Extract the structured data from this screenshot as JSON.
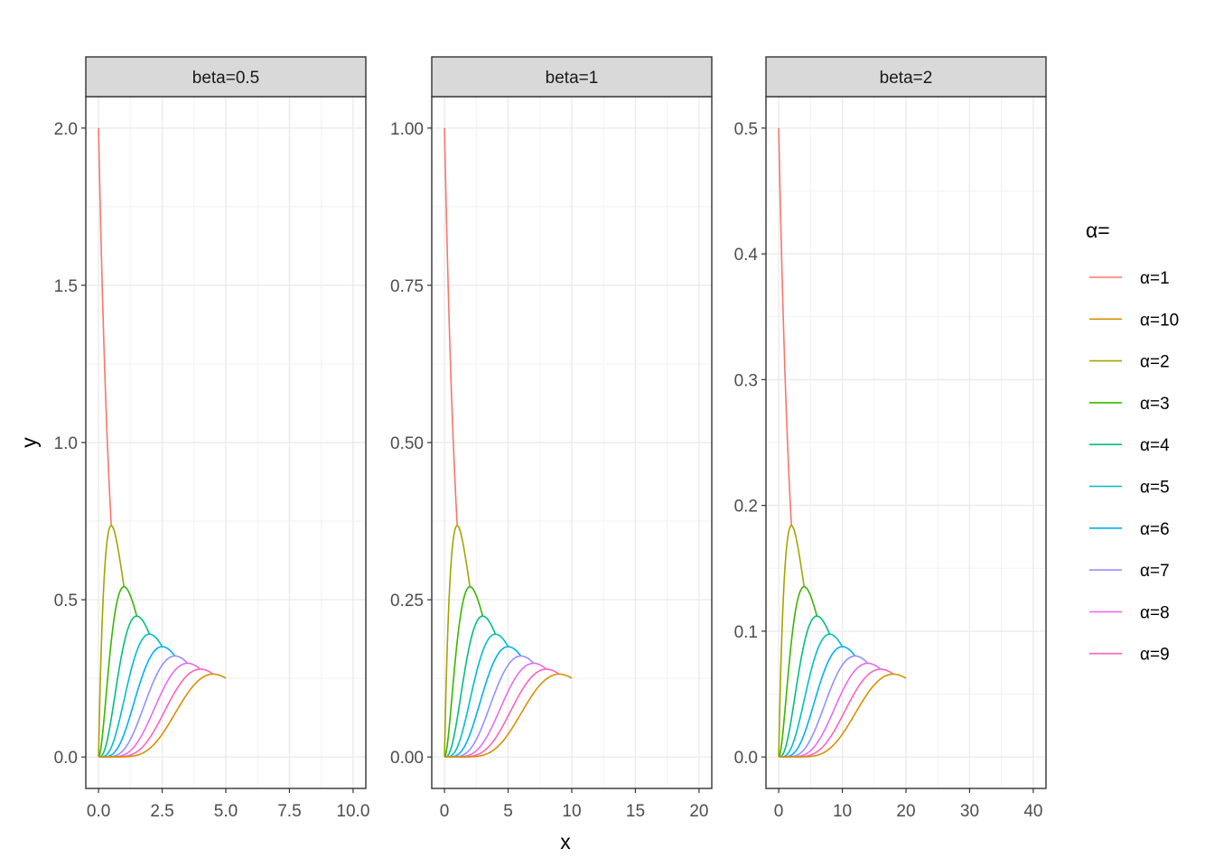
{
  "chart_data": {
    "type": "line",
    "xlabel": "x",
    "ylabel": "y",
    "legend": {
      "title": "α=",
      "placement": "right",
      "entries": [
        {
          "label": "α=1",
          "alpha": 1,
          "color": "#F8766D"
        },
        {
          "label": "α=10",
          "alpha": 10,
          "color": "#D89000"
        },
        {
          "label": "α=2",
          "alpha": 2,
          "color": "#A3A500"
        },
        {
          "label": "α=3",
          "alpha": 3,
          "color": "#39B600"
        },
        {
          "label": "α=4",
          "alpha": 4,
          "color": "#00BF7D"
        },
        {
          "label": "α=5",
          "alpha": 5,
          "color": "#00BFC4"
        },
        {
          "label": "α=6",
          "alpha": 6,
          "color": "#00B0F6"
        },
        {
          "label": "α=7",
          "alpha": 7,
          "color": "#9590FF"
        },
        {
          "label": "α=8",
          "alpha": 8,
          "color": "#E76BF3"
        },
        {
          "label": "α=9",
          "alpha": 9,
          "color": "#FF62BC"
        }
      ]
    },
    "grid": true,
    "series_formula": "y = x^(alpha-1) * exp(-x/beta) / (Gamma(alpha) * beta^alpha), x from 0 to alpha*beta",
    "panels": [
      {
        "strip": "beta=0.5",
        "beta": 0.5,
        "xlim": [
          -0.5,
          10.5
        ],
        "ylim": [
          -0.1,
          2.1
        ],
        "x_ticks": [
          0,
          2.5,
          5,
          7.5,
          10
        ],
        "x_tick_labels": [
          "0.0",
          "2.5",
          "5.0",
          "7.5",
          "10.0"
        ],
        "y_ticks": [
          0,
          0.5,
          1,
          1.5,
          2
        ],
        "y_tick_labels": [
          "0.0",
          "0.5",
          "1.0",
          "1.5",
          "2.0"
        ]
      },
      {
        "strip": "beta=1",
        "beta": 1,
        "xlim": [
          -1,
          21
        ],
        "ylim": [
          -0.05,
          1.05
        ],
        "x_ticks": [
          0,
          5,
          10,
          15,
          20
        ],
        "x_tick_labels": [
          "0",
          "5",
          "10",
          "15",
          "20"
        ],
        "y_ticks": [
          0,
          0.25,
          0.5,
          0.75,
          1
        ],
        "y_tick_labels": [
          "0.00",
          "0.25",
          "0.50",
          "0.75",
          "1.00"
        ]
      },
      {
        "strip": "beta=2",
        "beta": 2,
        "xlim": [
          -2,
          42
        ],
        "ylim": [
          -0.025,
          0.525
        ],
        "x_ticks": [
          0,
          10,
          20,
          30,
          40
        ],
        "x_tick_labels": [
          "0",
          "10",
          "20",
          "30",
          "40"
        ],
        "y_ticks": [
          0,
          0.1,
          0.2,
          0.3,
          0.4,
          0.5
        ],
        "y_tick_labels": [
          "0.0",
          "0.1",
          "0.2",
          "0.3",
          "0.4",
          "0.5"
        ]
      }
    ]
  }
}
